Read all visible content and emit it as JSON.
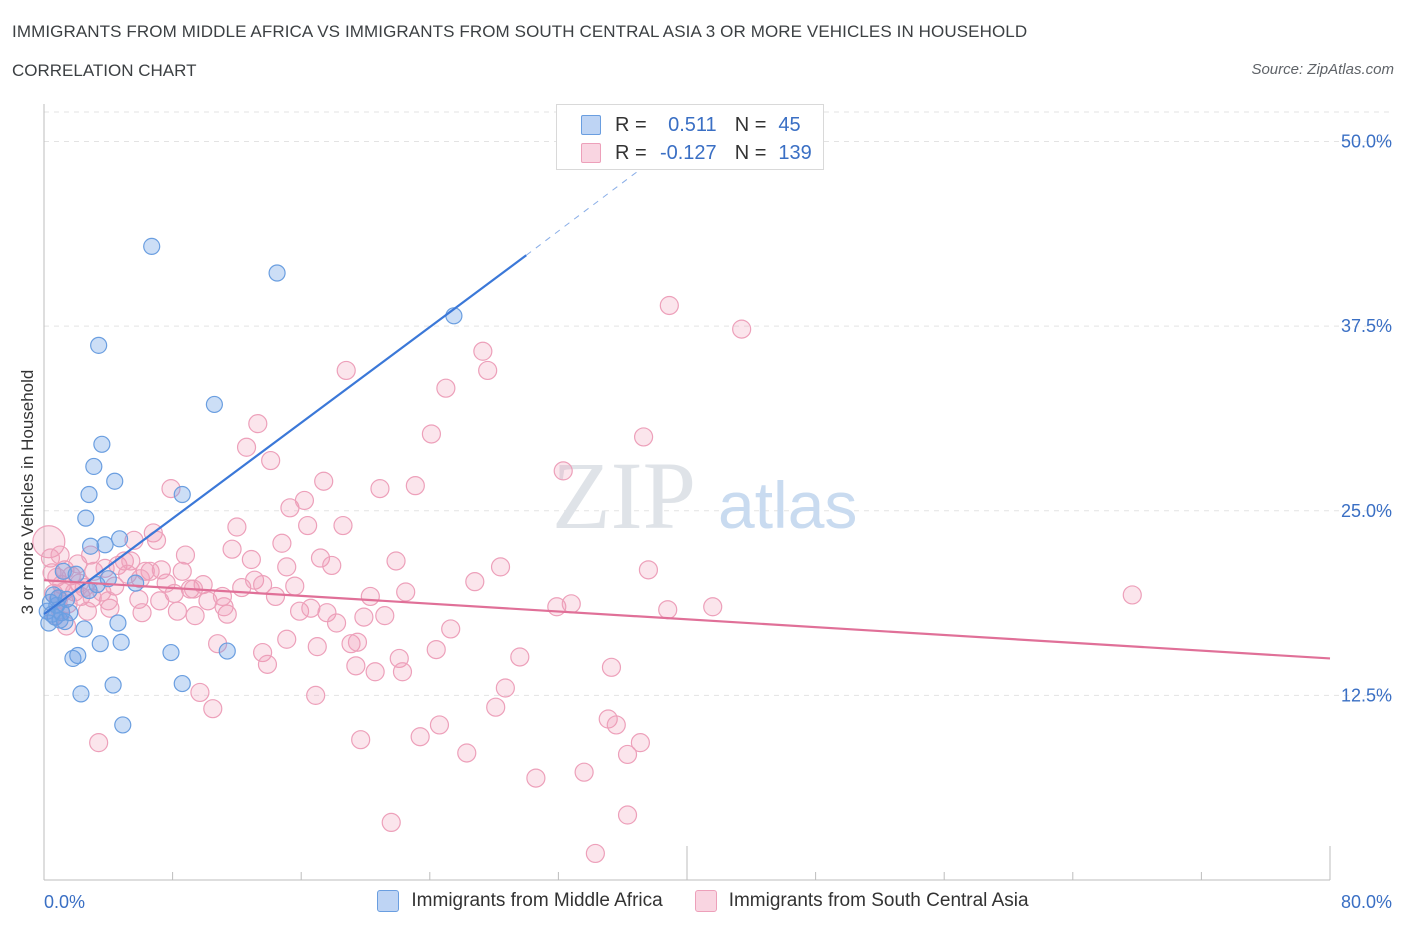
{
  "title": "IMMIGRANTS FROM MIDDLE AFRICA VS IMMIGRANTS FROM SOUTH CENTRAL ASIA 3 OR MORE VEHICLES IN HOUSEHOLD",
  "subtitle": "CORRELATION CHART",
  "source": "Source: ZipAtlas.com",
  "watermark": {
    "zip": "ZIP",
    "atlas": "atlas"
  },
  "legend_stats": [
    {
      "r_label": "R =",
      "r_value": "0.511",
      "n_label": "N =",
      "n_value": "45"
    },
    {
      "r_label": "R =",
      "r_value": "-0.127",
      "n_label": "N =",
      "n_value": "139"
    }
  ],
  "colors": {
    "blue": "#3b78d8",
    "blue_fill": "rgba(110,160,230,0.35)",
    "blue_stroke": "#6a9ee0",
    "pink": "#e07098",
    "pink_fill": "rgba(240,150,180,0.25)",
    "pink_stroke": "#eda0ba",
    "axis_text": "#3a6fc4",
    "grid": "#e3e3e3"
  },
  "chart_data": {
    "type": "scatter",
    "title": "IMMIGRANTS FROM MIDDLE AFRICA VS IMMIGRANTS FROM SOUTH CENTRAL ASIA 3 OR MORE VEHICLES IN HOUSEHOLD",
    "subtitle": "CORRELATION CHART",
    "xlabel": "",
    "ylabel": "3 or more Vehicles in Household",
    "xlim": [
      0,
      80
    ],
    "ylim": [
      0,
      52
    ],
    "x_tick_labels": [
      "0.0%",
      "80.0%"
    ],
    "y_ticks": [
      12.5,
      25.0,
      37.5,
      50.0
    ],
    "y_tick_labels": [
      "12.5%",
      "25.0%",
      "37.5%",
      "50.0%"
    ],
    "grid": true,
    "legend_position": "bottom",
    "series": [
      {
        "name": "Immigrants from Middle Africa",
        "color": "#3b78d8",
        "R": 0.511,
        "N": 45,
        "trend": {
          "x": [
            0.0,
            30.0
          ],
          "y": [
            18.0,
            42.3
          ],
          "dashed_to": [
            40.0,
            50.5
          ]
        },
        "points": [
          [
            0.2,
            18.2
          ],
          [
            0.3,
            17.4
          ],
          [
            0.4,
            18.8
          ],
          [
            0.5,
            18.0
          ],
          [
            0.6,
            19.3
          ],
          [
            0.7,
            17.8
          ],
          [
            0.8,
            18.6
          ],
          [
            0.9,
            19.1
          ],
          [
            1.0,
            17.6
          ],
          [
            1.1,
            18.1
          ],
          [
            1.2,
            20.9
          ],
          [
            1.3,
            17.5
          ],
          [
            1.4,
            19.0
          ],
          [
            1.6,
            18.1
          ],
          [
            1.8,
            15.0
          ],
          [
            2.0,
            20.7
          ],
          [
            2.1,
            15.2
          ],
          [
            2.3,
            12.6
          ],
          [
            2.5,
            17.0
          ],
          [
            2.6,
            24.5
          ],
          [
            2.8,
            19.6
          ],
          [
            2.8,
            26.1
          ],
          [
            2.9,
            22.6
          ],
          [
            3.1,
            28.0
          ],
          [
            3.3,
            20.0
          ],
          [
            3.4,
            36.2
          ],
          [
            3.5,
            16.0
          ],
          [
            3.6,
            29.5
          ],
          [
            3.8,
            22.7
          ],
          [
            4.0,
            20.4
          ],
          [
            4.3,
            13.2
          ],
          [
            4.4,
            27.0
          ],
          [
            4.6,
            17.4
          ],
          [
            4.7,
            23.1
          ],
          [
            4.8,
            16.1
          ],
          [
            4.9,
            10.5
          ],
          [
            5.7,
            20.1
          ],
          [
            6.7,
            42.9
          ],
          [
            7.9,
            15.4
          ],
          [
            8.6,
            13.3
          ],
          [
            8.6,
            26.1
          ],
          [
            10.6,
            32.2
          ],
          [
            11.4,
            15.5
          ],
          [
            14.5,
            41.1
          ],
          [
            25.5,
            38.2
          ]
        ]
      },
      {
        "name": "Immigrants from South Central Asia",
        "color": "#e07098",
        "R": -0.127,
        "N": 139,
        "trend": {
          "x": [
            0.0,
            80.0
          ],
          "y": [
            20.3,
            15.0
          ]
        },
        "points": [
          [
            0.3,
            22.9
          ],
          [
            0.5,
            20.8
          ],
          [
            0.6,
            19.4
          ],
          [
            0.7,
            17.9
          ],
          [
            0.8,
            20.5
          ],
          [
            0.9,
            19.0
          ],
          [
            1.0,
            18.3
          ],
          [
            1.1,
            20.0
          ],
          [
            1.2,
            19.5
          ],
          [
            1.3,
            21.0
          ],
          [
            1.4,
            17.2
          ],
          [
            1.5,
            18.7
          ],
          [
            1.7,
            20.6
          ],
          [
            1.9,
            19.5
          ],
          [
            2.1,
            21.4
          ],
          [
            2.3,
            19.2
          ],
          [
            2.5,
            19.8
          ],
          [
            2.7,
            18.2
          ],
          [
            2.9,
            22.0
          ],
          [
            3.1,
            20.9
          ],
          [
            3.4,
            9.3
          ],
          [
            3.6,
            19.5
          ],
          [
            3.8,
            21.1
          ],
          [
            4.1,
            18.4
          ],
          [
            4.4,
            19.9
          ],
          [
            4.6,
            21.3
          ],
          [
            5.0,
            21.6
          ],
          [
            5.2,
            20.7
          ],
          [
            5.4,
            21.6
          ],
          [
            5.6,
            23.0
          ],
          [
            5.9,
            19.0
          ],
          [
            6.1,
            18.1
          ],
          [
            6.3,
            20.9
          ],
          [
            6.6,
            20.9
          ],
          [
            6.8,
            23.5
          ],
          [
            7.0,
            23.0
          ],
          [
            7.3,
            21.0
          ],
          [
            7.6,
            20.1
          ],
          [
            7.9,
            26.5
          ],
          [
            8.1,
            19.4
          ],
          [
            8.3,
            18.2
          ],
          [
            8.6,
            20.9
          ],
          [
            8.8,
            22.0
          ],
          [
            9.1,
            19.7
          ],
          [
            9.4,
            17.9
          ],
          [
            9.7,
            12.7
          ],
          [
            9.9,
            20.0
          ],
          [
            10.2,
            18.9
          ],
          [
            10.5,
            11.6
          ],
          [
            10.8,
            16.0
          ],
          [
            11.1,
            19.2
          ],
          [
            11.4,
            18.0
          ],
          [
            11.7,
            22.4
          ],
          [
            12.0,
            23.9
          ],
          [
            12.3,
            19.8
          ],
          [
            12.6,
            29.3
          ],
          [
            12.9,
            21.7
          ],
          [
            13.1,
            20.3
          ],
          [
            13.3,
            30.9
          ],
          [
            13.6,
            15.4
          ],
          [
            13.9,
            14.6
          ],
          [
            14.1,
            28.4
          ],
          [
            14.4,
            19.2
          ],
          [
            14.8,
            22.8
          ],
          [
            15.1,
            21.2
          ],
          [
            15.3,
            25.2
          ],
          [
            15.6,
            19.9
          ],
          [
            15.9,
            18.2
          ],
          [
            16.2,
            25.7
          ],
          [
            16.4,
            24.0
          ],
          [
            16.6,
            18.4
          ],
          [
            16.9,
            12.5
          ],
          [
            17.2,
            21.8
          ],
          [
            17.4,
            27.0
          ],
          [
            17.6,
            18.1
          ],
          [
            17.9,
            21.3
          ],
          [
            18.2,
            17.4
          ],
          [
            18.6,
            24.0
          ],
          [
            18.8,
            34.5
          ],
          [
            19.1,
            16.0
          ],
          [
            19.4,
            14.5
          ],
          [
            19.7,
            9.5
          ],
          [
            19.9,
            17.8
          ],
          [
            20.3,
            19.2
          ],
          [
            20.6,
            14.1
          ],
          [
            20.9,
            26.5
          ],
          [
            21.2,
            17.9
          ],
          [
            21.6,
            3.9
          ],
          [
            21.9,
            21.6
          ],
          [
            22.1,
            15.0
          ],
          [
            22.3,
            14.1
          ],
          [
            23.1,
            26.7
          ],
          [
            23.4,
            9.7
          ],
          [
            24.1,
            30.2
          ],
          [
            24.4,
            15.6
          ],
          [
            24.6,
            10.5
          ],
          [
            25.0,
            33.3
          ],
          [
            25.3,
            17.0
          ],
          [
            26.3,
            8.6
          ],
          [
            26.8,
            20.2
          ],
          [
            27.3,
            35.8
          ],
          [
            27.6,
            34.5
          ],
          [
            28.1,
            11.7
          ],
          [
            28.4,
            21.2
          ],
          [
            28.7,
            13.0
          ],
          [
            29.6,
            15.1
          ],
          [
            30.6,
            6.9
          ],
          [
            31.9,
            18.5
          ],
          [
            32.3,
            27.7
          ],
          [
            32.8,
            18.7
          ],
          [
            33.6,
            7.3
          ],
          [
            34.3,
            1.8
          ],
          [
            35.1,
            10.9
          ],
          [
            35.3,
            14.4
          ],
          [
            35.6,
            10.5
          ],
          [
            36.3,
            8.5
          ],
          [
            36.3,
            4.4
          ],
          [
            37.1,
            9.3
          ],
          [
            37.3,
            30.0
          ],
          [
            37.6,
            21.0
          ],
          [
            38.8,
            18.3
          ],
          [
            38.9,
            38.9
          ],
          [
            41.6,
            18.5
          ],
          [
            43.4,
            37.3
          ],
          [
            67.7,
            19.3
          ],
          [
            0.4,
            21.8
          ],
          [
            1.0,
            22.0
          ],
          [
            2.2,
            20.1
          ],
          [
            3.0,
            19.1
          ],
          [
            4.0,
            18.9
          ],
          [
            6.0,
            20.4
          ],
          [
            7.2,
            18.9
          ],
          [
            9.3,
            19.7
          ],
          [
            11.2,
            18.5
          ],
          [
            13.6,
            20.0
          ],
          [
            15.1,
            16.3
          ],
          [
            17.0,
            15.8
          ],
          [
            19.5,
            16.1
          ],
          [
            22.5,
            19.5
          ]
        ]
      }
    ]
  },
  "legend": [
    {
      "label": "Immigrants from Middle Africa"
    },
    {
      "label": "Immigrants from South Central Asia"
    }
  ]
}
